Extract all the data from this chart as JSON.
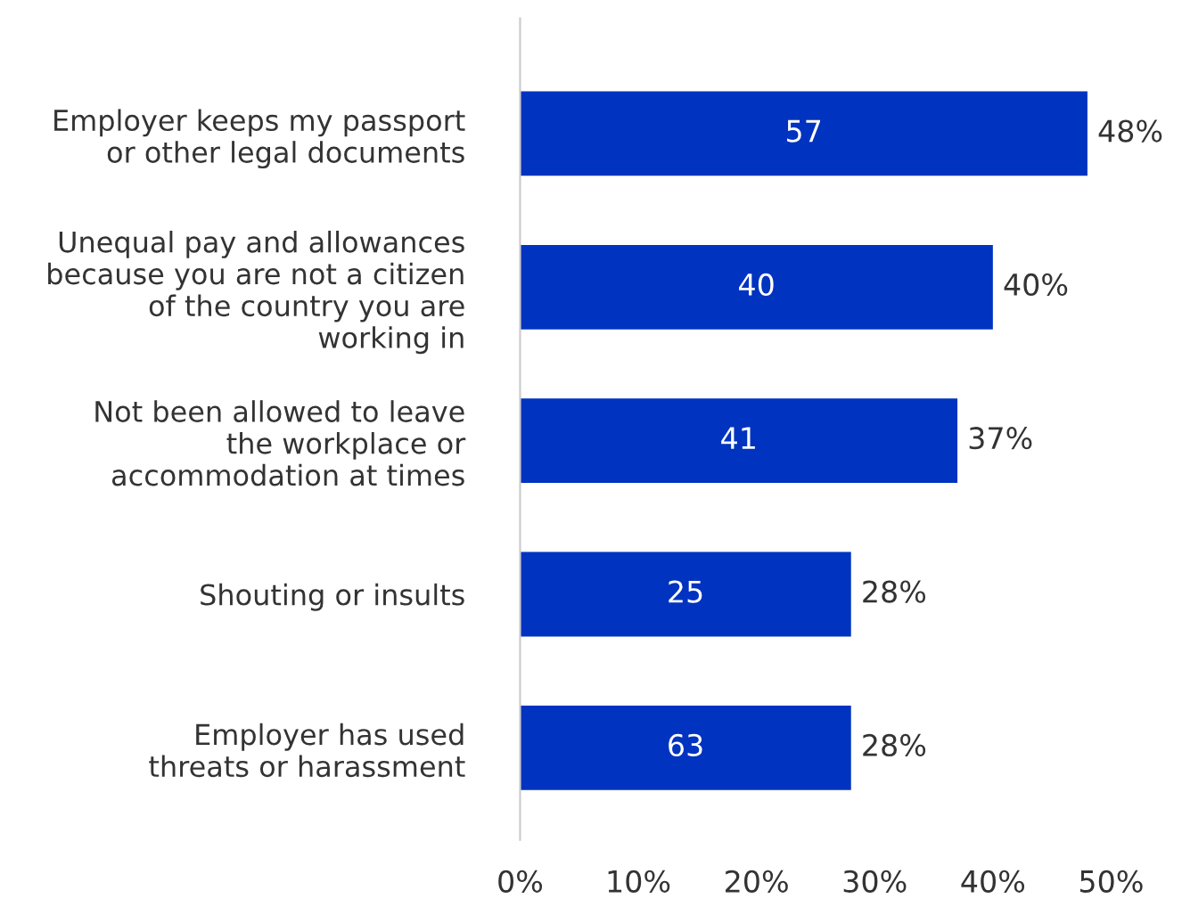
{
  "chart_data": {
    "type": "bar",
    "orientation": "horizontal",
    "categories": [
      "Employer keeps my passport\nor other legal documents",
      "Unequal pay and allowances\nbecause you are not a citizen\nof the country you are\nworking in",
      "Not been allowed to leave\nthe workplace or\naccommodation at times",
      "Shouting or insults",
      "Employer has used\nthreats or harassment"
    ],
    "values": [
      48,
      40,
      37,
      28,
      28
    ],
    "value_labels": [
      "48%",
      "40%",
      "37%",
      "28%",
      "28%"
    ],
    "color": "#0033bf",
    "xlim": [
      0,
      50
    ],
    "xticks": [
      {
        "value": 0,
        "label": "0%"
      },
      {
        "value": 10,
        "label": "10%"
      },
      {
        "value": 20,
        "label": "20%"
      },
      {
        "value": 30,
        "label": "30%"
      },
      {
        "value": 40,
        "label": "40%"
      },
      {
        "value": 50,
        "label": "50%"
      }
    ],
    "grid": false,
    "legend": false,
    "annotations": [
      "57",
      "40",
      "41",
      "25",
      "63"
    ]
  }
}
